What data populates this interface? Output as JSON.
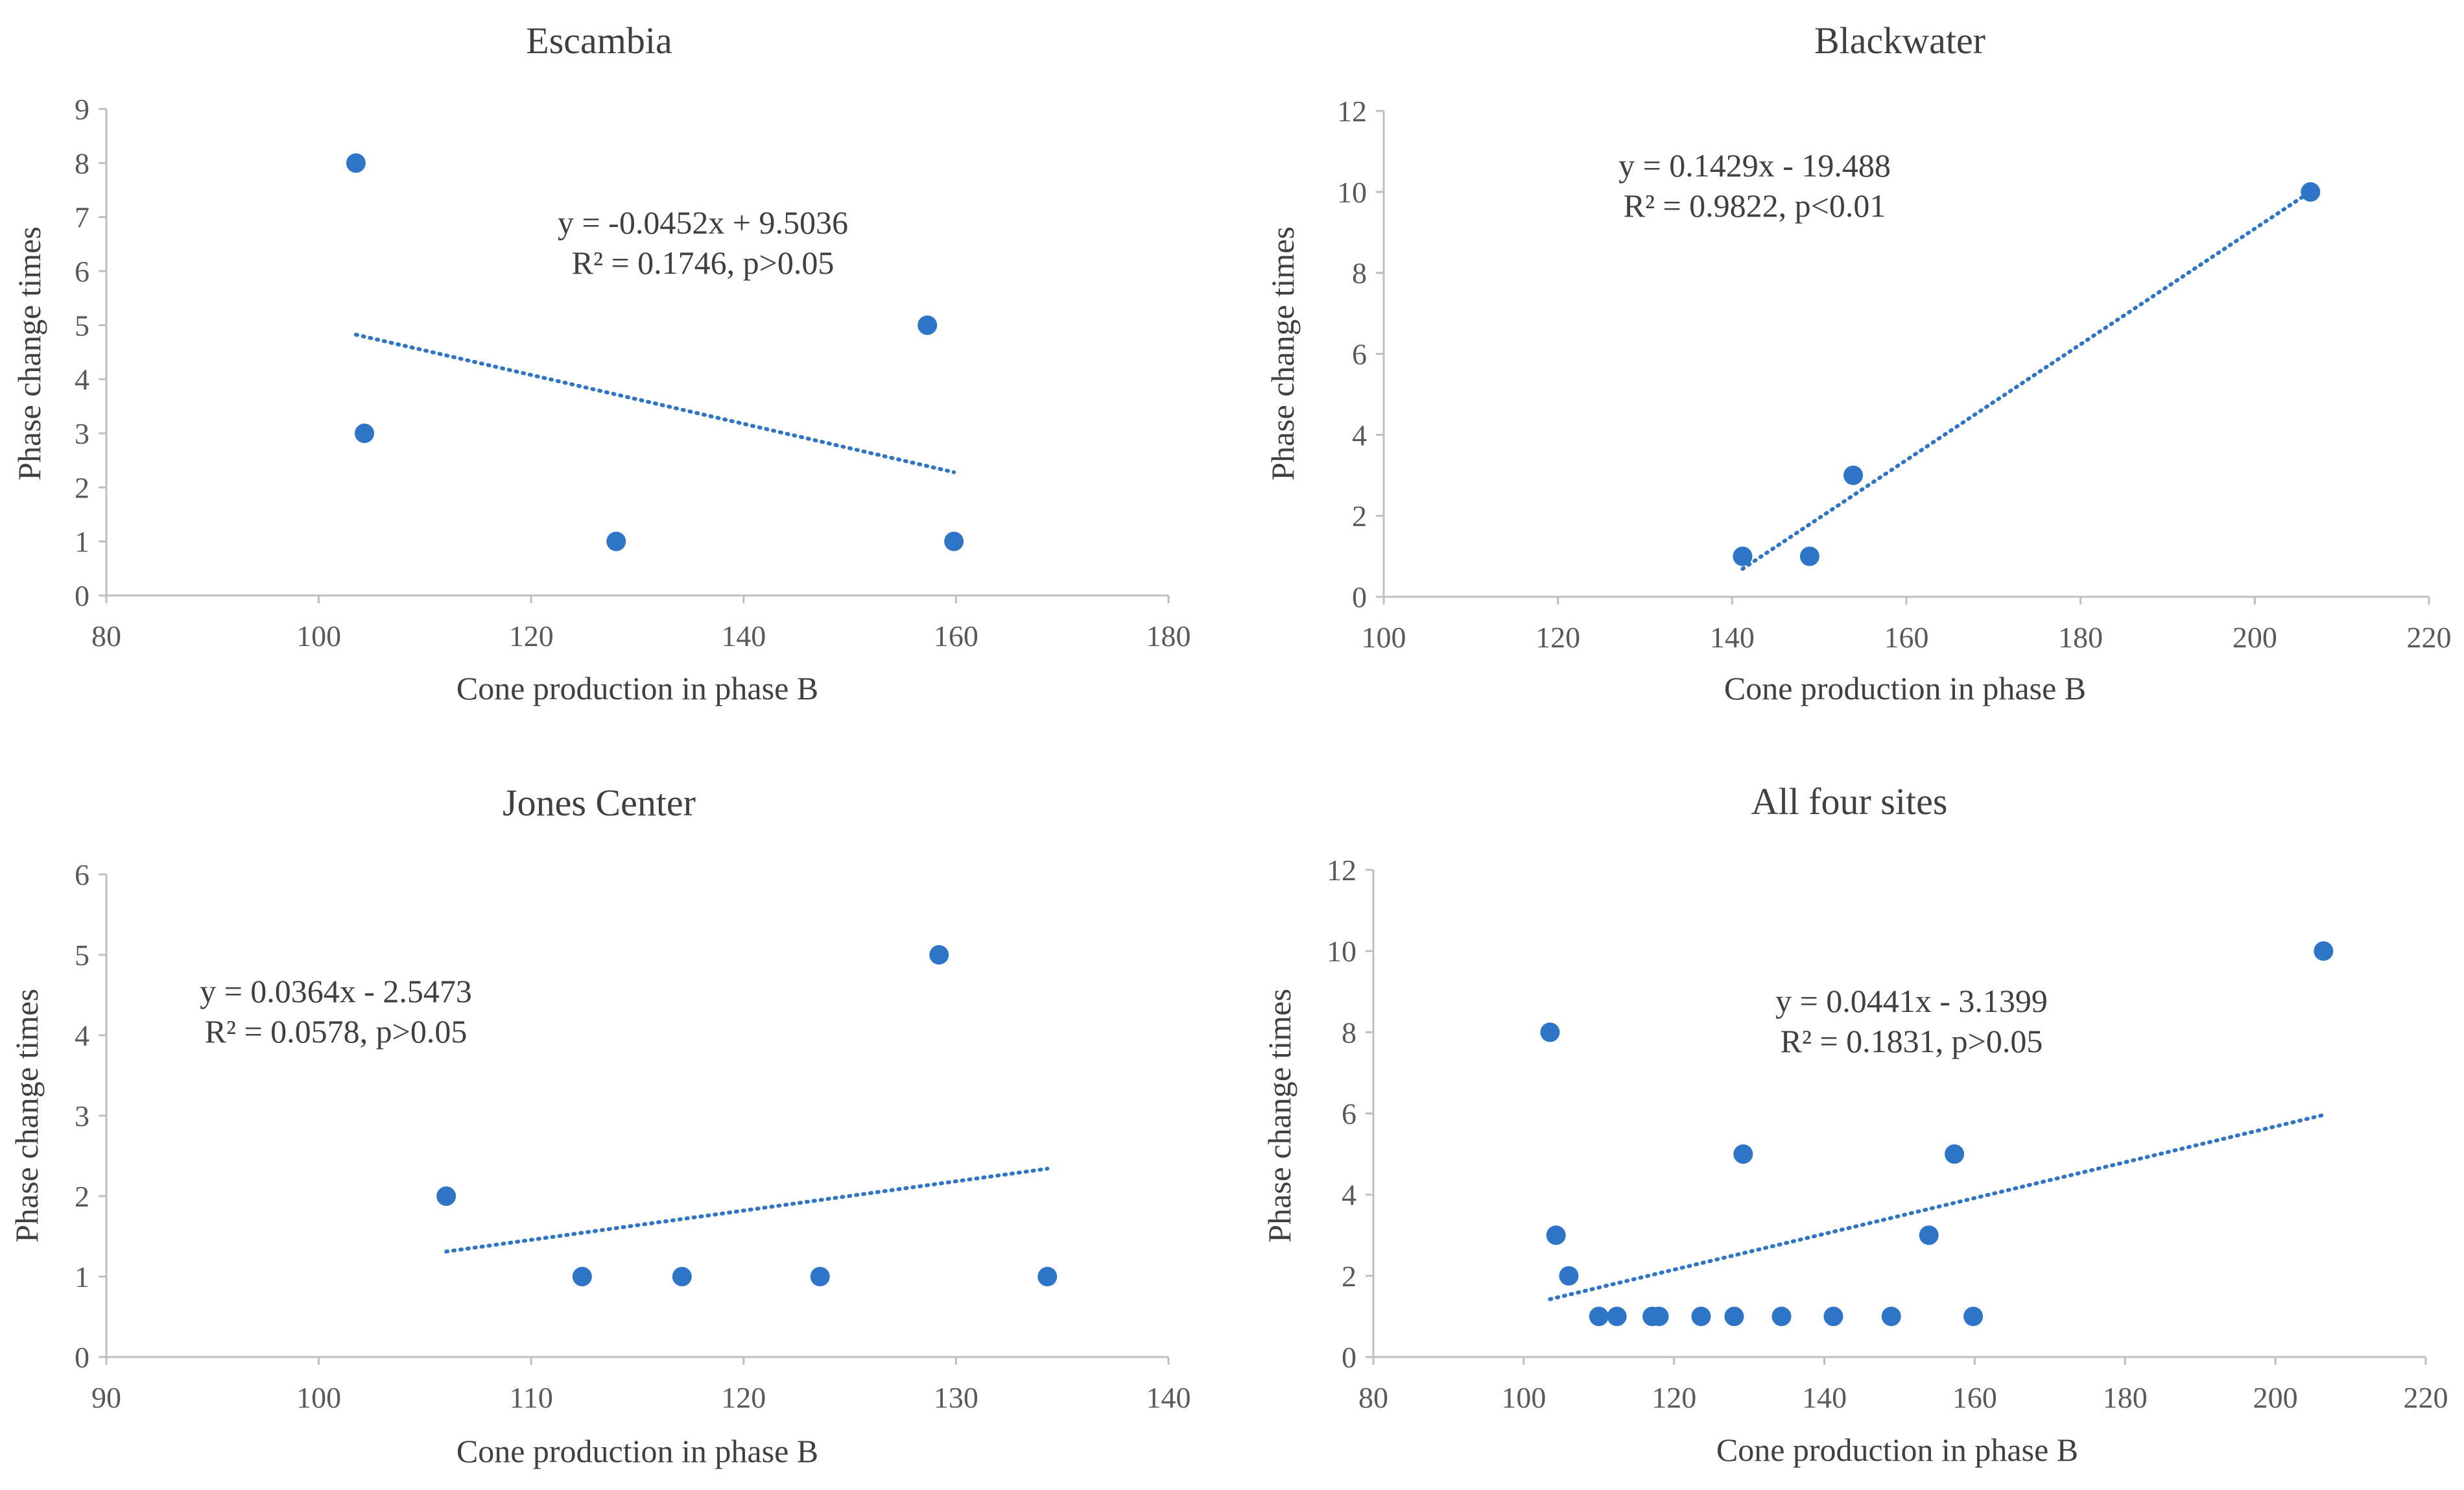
{
  "colors": {
    "marker": "#2e75c8",
    "trendline": "#2e75c8",
    "axis": "#bfbfbf",
    "text": "#404040"
  },
  "chart_data": [
    {
      "id": "escambia",
      "type": "scatter",
      "title": "Escambia",
      "xlabel": "Cone production in phase B",
      "ylabel": "Phase change times",
      "xlim": [
        80,
        180
      ],
      "ylim": [
        0,
        9
      ],
      "xticks": [
        80,
        100,
        120,
        140,
        160,
        180
      ],
      "yticks": [
        0,
        1,
        2,
        3,
        4,
        5,
        6,
        7,
        8,
        9
      ],
      "grid": false,
      "points": [
        {
          "x": 103.5,
          "y": 8
        },
        {
          "x": 104.3,
          "y": 3
        },
        {
          "x": 128.0,
          "y": 1
        },
        {
          "x": 157.3,
          "y": 5
        },
        {
          "x": 159.8,
          "y": 1
        }
      ],
      "trendline": {
        "type": "linear",
        "x_range": [
          103.5,
          159.8
        ],
        "slope": -0.0452,
        "intercept": 9.5036
      },
      "annotation": [
        "y = -0.0452x + 9.5036",
        "R² = 0.1746, p>0.05"
      ]
    },
    {
      "id": "blackwater",
      "type": "scatter",
      "title": "Blackwater",
      "xlabel": "Cone production in phase B",
      "ylabel": "Phase change times",
      "xlim": [
        100,
        220
      ],
      "ylim": [
        0,
        12
      ],
      "xticks": [
        100,
        120,
        140,
        160,
        180,
        200,
        220
      ],
      "yticks": [
        0,
        2,
        4,
        6,
        8,
        10,
        12
      ],
      "grid": false,
      "points": [
        {
          "x": 141.2,
          "y": 1
        },
        {
          "x": 148.9,
          "y": 1
        },
        {
          "x": 153.9,
          "y": 3
        },
        {
          "x": 206.4,
          "y": 10
        }
      ],
      "trendline": {
        "type": "linear",
        "x_range": [
          141.2,
          206.4
        ],
        "slope": 0.1429,
        "intercept": -19.488
      },
      "annotation": [
        "y = 0.1429x - 19.488",
        "R² = 0.9822, p<0.01"
      ]
    },
    {
      "id": "jones-center",
      "type": "scatter",
      "title": "Jones Center",
      "xlabel": "Cone production in phase B",
      "ylabel": "Phase change times",
      "xlim": [
        90,
        140
      ],
      "ylim": [
        0,
        6
      ],
      "xticks": [
        90,
        100,
        110,
        120,
        130,
        140
      ],
      "yticks": [
        0,
        1,
        2,
        3,
        4,
        5,
        6
      ],
      "grid": false,
      "points": [
        {
          "x": 106.0,
          "y": 2
        },
        {
          "x": 112.4,
          "y": 1
        },
        {
          "x": 117.1,
          "y": 1
        },
        {
          "x": 123.6,
          "y": 1
        },
        {
          "x": 129.2,
          "y": 5
        },
        {
          "x": 134.3,
          "y": 1
        }
      ],
      "trendline": {
        "type": "linear",
        "x_range": [
          106.0,
          134.3
        ],
        "slope": 0.0364,
        "intercept": -2.5473
      },
      "annotation": [
        "y = 0.0364x - 2.5473",
        "R² = 0.0578, p>0.05"
      ]
    },
    {
      "id": "all-four-sites",
      "type": "scatter",
      "title": "All four sites",
      "xlabel": "Cone production in phase B",
      "ylabel": "Phase change times",
      "xlim": [
        80,
        220
      ],
      "ylim": [
        0,
        12
      ],
      "xticks": [
        80,
        100,
        120,
        140,
        160,
        180,
        200,
        220
      ],
      "yticks": [
        0,
        2,
        4,
        6,
        8,
        10,
        12
      ],
      "grid": false,
      "points": [
        {
          "x": 103.5,
          "y": 8
        },
        {
          "x": 104.3,
          "y": 3
        },
        {
          "x": 106.0,
          "y": 2
        },
        {
          "x": 110.0,
          "y": 1
        },
        {
          "x": 112.4,
          "y": 1
        },
        {
          "x": 117.1,
          "y": 1
        },
        {
          "x": 118.0,
          "y": 1
        },
        {
          "x": 123.6,
          "y": 1
        },
        {
          "x": 128.0,
          "y": 1
        },
        {
          "x": 129.2,
          "y": 5
        },
        {
          "x": 134.3,
          "y": 1
        },
        {
          "x": 141.2,
          "y": 1
        },
        {
          "x": 148.9,
          "y": 1
        },
        {
          "x": 153.9,
          "y": 3
        },
        {
          "x": 157.3,
          "y": 5
        },
        {
          "x": 159.8,
          "y": 1
        },
        {
          "x": 206.4,
          "y": 10
        }
      ],
      "trendline": {
        "type": "linear",
        "x_range": [
          103.5,
          206.4
        ],
        "slope": 0.0441,
        "intercept": -3.1399
      },
      "annotation": [
        "y = 0.0441x - 3.1399",
        "R² = 0.1831, p>0.05"
      ]
    }
  ]
}
